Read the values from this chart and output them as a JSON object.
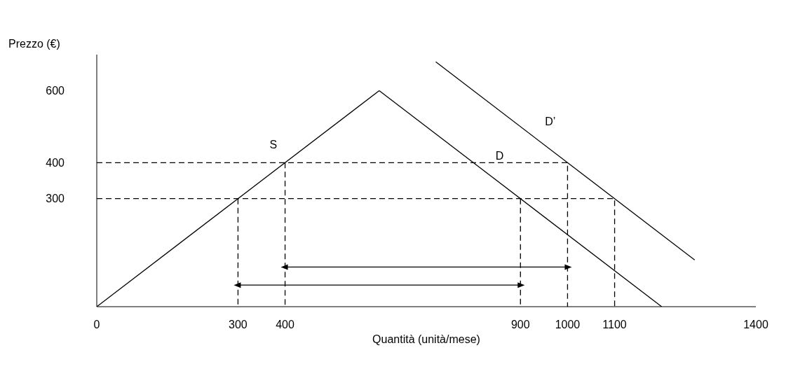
{
  "chart_data": {
    "type": "line",
    "xlabel": "Quantità (unità/mese)",
    "ylabel": "Prezzo (€)",
    "xlim": [
      0,
      1400
    ],
    "ylim": [
      0,
      700
    ],
    "xticks": [
      0,
      300,
      400,
      900,
      1000,
      1100,
      1400
    ],
    "yticks": [
      300,
      400,
      600
    ],
    "series": [
      {
        "name": "S",
        "x": [
          0,
          600
        ],
        "values": [
          0,
          600
        ],
        "color": "#000000",
        "line_style": "solid"
      },
      {
        "name": "D",
        "x": [
          600,
          1200
        ],
        "values": [
          600,
          0
        ],
        "color": "#000000",
        "line_style": "solid"
      },
      {
        "name": "D’",
        "x": [
          720,
          1270
        ],
        "values": [
          680,
          130
        ],
        "color": "#000000",
        "line_style": "solid"
      },
      {
        "x": [
          0,
          1000,
          1000
        ],
        "values": [
          400,
          400,
          0
        ],
        "color": "#000000",
        "line_style": "dashed"
      },
      {
        "x": [
          400,
          400
        ],
        "values": [
          400,
          0
        ],
        "color": "#000000",
        "line_style": "dashed"
      },
      {
        "x": [
          0,
          1100,
          1100
        ],
        "values": [
          300,
          300,
          0
        ],
        "color": "#000000",
        "line_style": "dashed"
      },
      {
        "x": [
          300,
          300
        ],
        "values": [
          300,
          0
        ],
        "color": "#000000",
        "line_style": "dashed"
      },
      {
        "x": [
          900,
          900
        ],
        "values": [
          300,
          0
        ],
        "color": "#000000",
        "line_style": "dashed"
      },
      {
        "x": [
          400,
          1000
        ],
        "values": [
          110,
          110
        ],
        "color": "#000000",
        "line_style": "solid",
        "marker": "triangle"
      },
      {
        "x": [
          300,
          900
        ],
        "values": [
          60,
          60
        ],
        "color": "#000000",
        "line_style": "solid",
        "marker": "triangle"
      }
    ]
  }
}
